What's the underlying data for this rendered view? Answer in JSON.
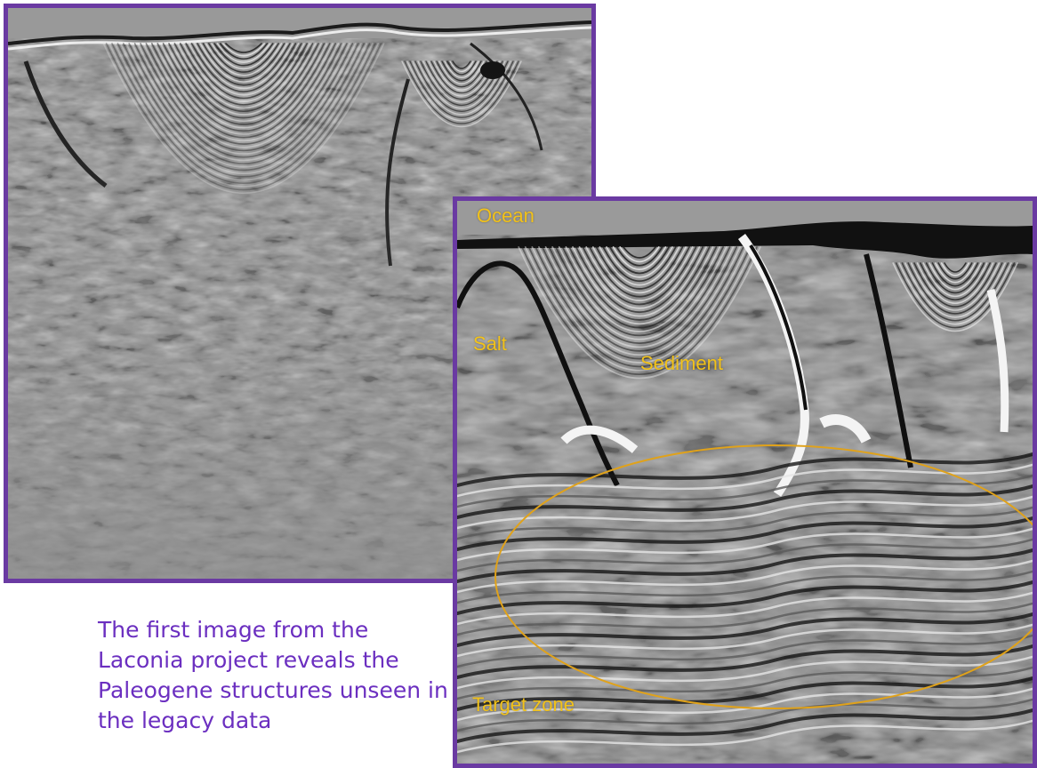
{
  "legacy_image": {
    "icon": "seismic-section-image"
  },
  "laconia_image": {
    "icon": "seismic-section-image",
    "labels": {
      "ocean": "Ocean",
      "salt": "Salt",
      "sediment": "Sediment",
      "target_zone": "Target zone"
    }
  },
  "caption": "The first image from the Laconia project reveals the Paleogene structures unseen in the legacy data",
  "colors": {
    "frame": "#6a3aa2",
    "label": "#f2c21a",
    "caption": "#6b2fc0",
    "ellipse": "#e0a21a"
  }
}
